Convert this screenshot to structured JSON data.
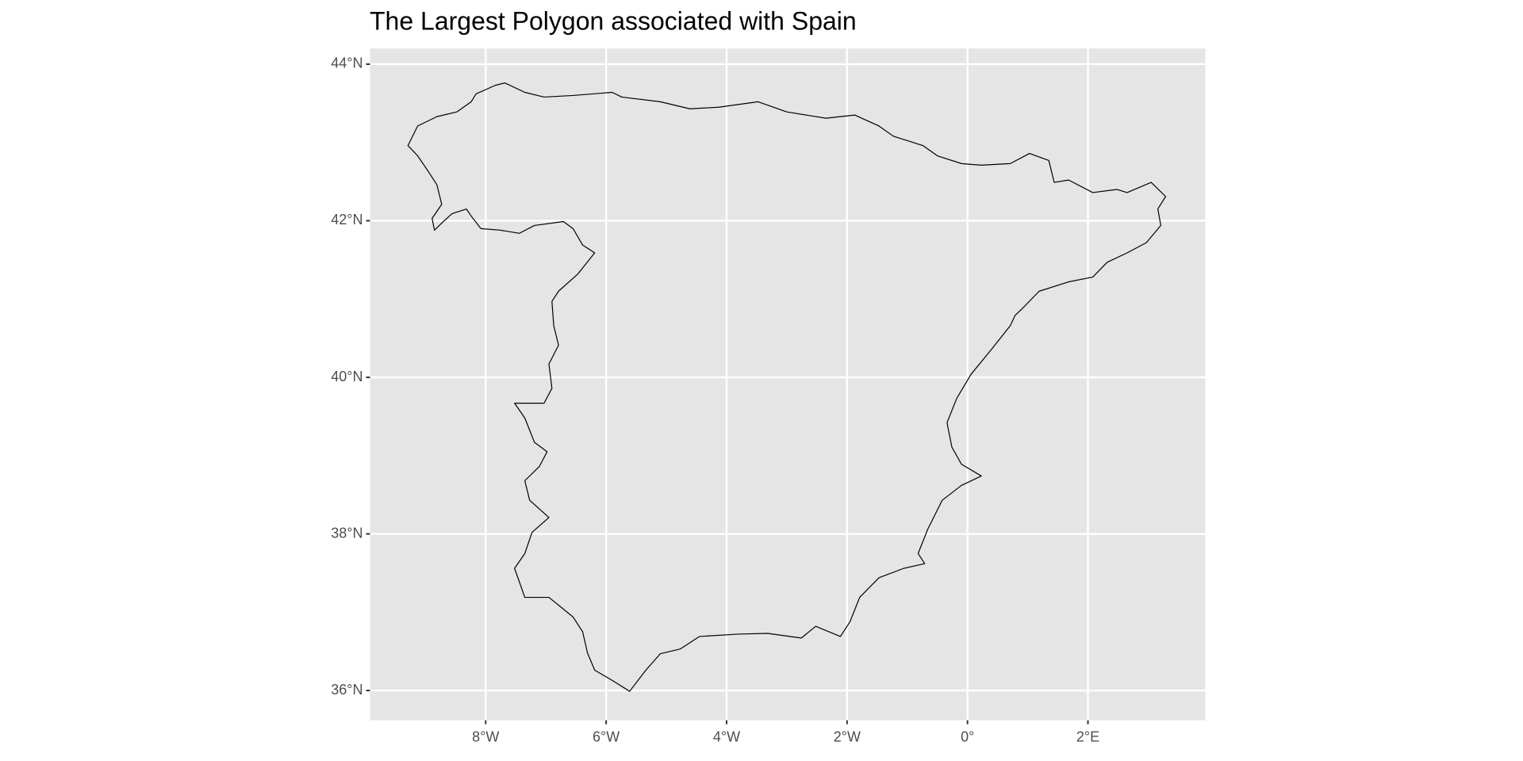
{
  "chart_data": {
    "type": "map",
    "title": "The Largest Polygon associated with Spain",
    "color": "#000000",
    "grid": true,
    "xlim": [
      -9.92,
      3.95
    ],
    "ylim": [
      35.62,
      44.2
    ],
    "xticks": [
      {
        "value": -8,
        "label": "8°W"
      },
      {
        "value": -6,
        "label": "6°W"
      },
      {
        "value": -4,
        "label": "4°W"
      },
      {
        "value": -2,
        "label": "2°W"
      },
      {
        "value": 0,
        "label": "0°"
      },
      {
        "value": 2,
        "label": "2°E"
      }
    ],
    "yticks": [
      {
        "value": 36,
        "label": "36°N"
      },
      {
        "value": 38,
        "label": "38°N"
      },
      {
        "value": 40,
        "label": "40°N"
      },
      {
        "value": 42,
        "label": "42°N"
      },
      {
        "value": 44,
        "label": "44°N"
      }
    ],
    "x": [
      -9.29,
      -9.13,
      -8.81,
      -8.48,
      -8.24,
      -8.16,
      -7.84,
      -7.68,
      -7.35,
      -7.03,
      -6.55,
      -5.9,
      -5.74,
      -5.1,
      -4.61,
      -4.13,
      -3.48,
      -3.0,
      -2.35,
      -1.87,
      -1.47,
      -1.23,
      -0.74,
      -0.5,
      -0.1,
      0.23,
      0.71,
      1.03,
      1.35,
      1.44,
      1.68,
      2.08,
      2.48,
      2.65,
      3.05,
      3.29,
      3.16,
      3.21,
      2.97,
      2.65,
      2.32,
      2.08,
      1.68,
      1.19,
      0.95,
      0.79,
      0.71,
      0.39,
      0.06,
      -0.18,
      -0.34,
      -0.26,
      -0.1,
      0.23,
      -0.1,
      -0.42,
      -0.66,
      -0.82,
      -0.71,
      -1.06,
      -1.47,
      -1.79,
      -1.95,
      -2.11,
      -2.52,
      -2.76,
      -3.32,
      -3.81,
      -4.45,
      -4.77,
      -5.1,
      -5.34,
      -5.61,
      -5.9,
      -6.19,
      -6.31,
      -6.39,
      -6.55,
      -6.95,
      -7.35,
      -7.52,
      -7.35,
      -7.23,
      -6.95,
      -7.27,
      -7.35,
      -7.11,
      -6.98,
      -7.19,
      -7.35,
      -7.52,
      -7.03,
      -6.9,
      -6.95,
      -6.79,
      -6.87,
      -6.9,
      -6.79,
      -6.47,
      -6.19,
      -6.39,
      -6.55,
      -6.71,
      -7.19,
      -7.44,
      -7.76,
      -8.08,
      -8.24,
      -8.32,
      -8.56,
      -8.73,
      -8.85,
      -8.89,
      -8.73,
      -8.81,
      -8.97,
      -9.13
    ],
    "y": [
      42.96,
      43.21,
      43.33,
      43.39,
      43.52,
      43.62,
      43.73,
      43.76,
      43.64,
      43.58,
      43.6,
      43.64,
      43.58,
      43.52,
      43.43,
      43.45,
      43.52,
      43.39,
      43.31,
      43.35,
      43.21,
      43.08,
      42.96,
      42.83,
      42.73,
      42.71,
      42.73,
      42.86,
      42.77,
      42.49,
      42.52,
      42.36,
      42.4,
      42.36,
      42.49,
      42.31,
      42.15,
      41.94,
      41.72,
      41.59,
      41.47,
      41.28,
      41.22,
      41.1,
      40.91,
      40.79,
      40.66,
      40.35,
      40.04,
      39.73,
      39.42,
      39.11,
      38.89,
      38.74,
      38.62,
      38.43,
      38.06,
      37.75,
      37.62,
      37.56,
      37.44,
      37.19,
      36.88,
      36.69,
      36.82,
      36.67,
      36.73,
      36.72,
      36.69,
      36.53,
      36.47,
      36.26,
      35.99,
      36.13,
      36.26,
      36.48,
      36.75,
      36.94,
      37.19,
      37.19,
      37.56,
      37.75,
      38.02,
      38.21,
      38.43,
      38.68,
      38.86,
      39.05,
      39.17,
      39.48,
      39.67,
      39.67,
      39.86,
      40.17,
      40.41,
      40.66,
      40.97,
      41.1,
      41.32,
      41.59,
      41.69,
      41.9,
      41.99,
      41.94,
      41.84,
      41.88,
      41.9,
      42.06,
      42.15,
      42.09,
      41.97,
      41.88,
      42.03,
      42.21,
      42.46,
      42.65,
      42.83
    ]
  }
}
